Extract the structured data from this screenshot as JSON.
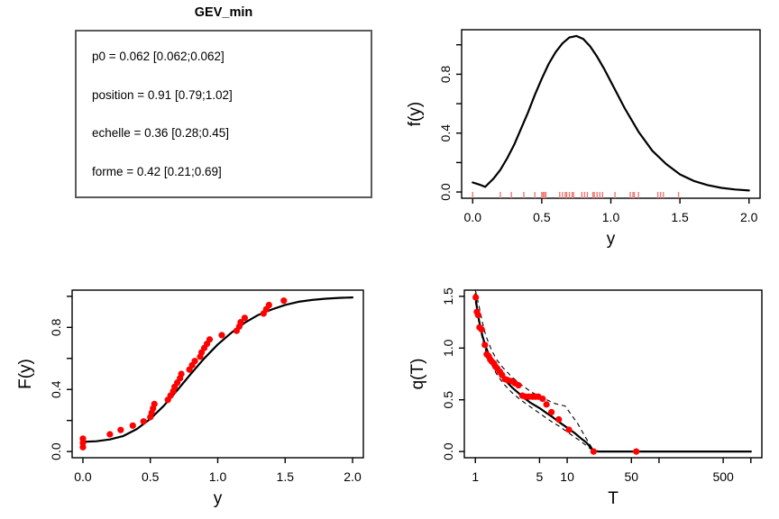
{
  "params_panel": {
    "title": "GEV_min",
    "lines": [
      "p0 = 0.062 [0.062;0.062]",
      "position = 0.91 [0.79;1.02]",
      "echelle = 0.36 [0.28;0.45]",
      "forme = 0.42 [0.21;0.69]"
    ]
  },
  "colors": {
    "curve": "#000000",
    "points": "#ff0000",
    "rug": "#ef7a76",
    "axis": "#000000",
    "param_box_border": "#5a5a5a",
    "background": "#ffffff"
  },
  "chart_data": [
    {
      "id": "density",
      "type": "line",
      "title": "",
      "xlabel": "y",
      "ylabel": "f(y)",
      "xscale": "linear",
      "xlim": [
        0,
        2
      ],
      "ylim": [
        0,
        1.06
      ],
      "grid": false,
      "legend": false,
      "xticks": {
        "values": [
          0,
          0.5,
          1,
          1.5,
          2
        ],
        "labels": [
          "0.0",
          "0.5",
          "1.0",
          "1.5",
          "2.0"
        ]
      },
      "yticks": {
        "values": [
          0,
          0.2,
          0.4,
          0.6,
          0.8,
          1
        ],
        "labels": [
          "0.0",
          "",
          "0.4",
          "",
          "0.8",
          ""
        ]
      },
      "curve": {
        "x": [
          0,
          0.05,
          0.09,
          0.15,
          0.2,
          0.25,
          0.3,
          0.35,
          0.4,
          0.45,
          0.5,
          0.55,
          0.6,
          0.65,
          0.7,
          0.75,
          0.8,
          0.85,
          0.9,
          0.95,
          1,
          1.1,
          1.2,
          1.3,
          1.4,
          1.5,
          1.6,
          1.7,
          1.8,
          1.9,
          2
        ],
        "y": [
          0.065,
          0.05,
          0.035,
          0.09,
          0.15,
          0.23,
          0.32,
          0.43,
          0.54,
          0.66,
          0.77,
          0.87,
          0.95,
          1.01,
          1.05,
          1.06,
          1.04,
          0.99,
          0.92,
          0.84,
          0.75,
          0.57,
          0.41,
          0.28,
          0.19,
          0.12,
          0.075,
          0.047,
          0.028,
          0.017,
          0.01
        ]
      },
      "rug_x": [
        0,
        0.2,
        0.28,
        0.37,
        0.45,
        0.5,
        0.51,
        0.52,
        0.53,
        0.63,
        0.65,
        0.67,
        0.68,
        0.7,
        0.72,
        0.73,
        0.79,
        0.81,
        0.83,
        0.87,
        0.88,
        0.9,
        0.92,
        0.94,
        1.03,
        1.14,
        1.16,
        1.17,
        1.2,
        1.34,
        1.36,
        1.38,
        1.49
      ]
    },
    {
      "id": "cdf",
      "type": "line",
      "title": "",
      "xlabel": "y",
      "ylabel": "F(y)",
      "xscale": "linear",
      "xlim": [
        0,
        2
      ],
      "ylim": [
        0,
        1
      ],
      "grid": false,
      "legend": false,
      "xticks": {
        "values": [
          0,
          0.5,
          1,
          1.5,
          2
        ],
        "labels": [
          "0.0",
          "0.5",
          "1.0",
          "1.5",
          "2.0"
        ]
      },
      "yticks": {
        "values": [
          0,
          0.2,
          0.4,
          0.6,
          0.8,
          1
        ],
        "labels": [
          "0.0",
          "",
          "0.4",
          "",
          "0.8",
          ""
        ]
      },
      "curve": {
        "x": [
          0,
          0.1,
          0.2,
          0.3,
          0.4,
          0.5,
          0.6,
          0.7,
          0.8,
          0.9,
          1,
          1.1,
          1.2,
          1.3,
          1.4,
          1.5,
          1.6,
          1.7,
          1.8,
          1.9,
          2
        ],
        "y": [
          0.062,
          0.066,
          0.078,
          0.1,
          0.145,
          0.21,
          0.295,
          0.395,
          0.5,
          0.6,
          0.69,
          0.765,
          0.83,
          0.88,
          0.915,
          0.945,
          0.965,
          0.977,
          0.985,
          0.99,
          0.993
        ]
      },
      "points": {
        "x": [
          0,
          0,
          0,
          0.2,
          0.28,
          0.37,
          0.45,
          0.5,
          0.51,
          0.52,
          0.53,
          0.63,
          0.65,
          0.67,
          0.68,
          0.7,
          0.72,
          0.73,
          0.79,
          0.81,
          0.83,
          0.87,
          0.88,
          0.9,
          0.92,
          0.94,
          1.03,
          1.14,
          1.16,
          1.17,
          1.2,
          1.34,
          1.36,
          1.38,
          1.49
        ],
        "y": [
          0.028,
          0.056,
          0.083,
          0.111,
          0.139,
          0.167,
          0.194,
          0.222,
          0.25,
          0.278,
          0.306,
          0.333,
          0.361,
          0.389,
          0.417,
          0.444,
          0.472,
          0.5,
          0.528,
          0.556,
          0.583,
          0.611,
          0.639,
          0.667,
          0.694,
          0.722,
          0.75,
          0.778,
          0.806,
          0.833,
          0.861,
          0.889,
          0.917,
          0.944,
          0.972
        ]
      }
    },
    {
      "id": "quantile",
      "type": "line",
      "title": "",
      "xlabel": "T",
      "ylabel": "q(T)",
      "xscale": "log",
      "xlim": [
        1,
        1000
      ],
      "ylim": [
        0,
        1.5
      ],
      "grid": false,
      "legend": false,
      "xticks": {
        "values": [
          1,
          5,
          10,
          50,
          100,
          500,
          1000
        ],
        "labels": [
          "1",
          "5",
          "10",
          "50",
          "",
          "500",
          ""
        ]
      },
      "yticks": {
        "values": [
          0,
          0.5,
          1,
          1.5
        ],
        "labels": [
          "0.0",
          "0.5",
          "1.0",
          "1.5"
        ]
      },
      "curve": {
        "x": [
          1,
          1.05,
          1.1,
          1.2,
          1.3,
          1.4,
          1.5,
          1.7,
          2,
          2.5,
          3,
          3.5,
          4,
          5,
          6,
          7,
          8,
          10,
          12,
          14,
          16,
          18,
          19.5,
          22,
          1000
        ],
        "y": [
          1.52,
          1.36,
          1.26,
          1.11,
          1.01,
          0.94,
          0.88,
          0.79,
          0.71,
          0.62,
          0.56,
          0.51,
          0.47,
          0.42,
          0.37,
          0.33,
          0.29,
          0.23,
          0.18,
          0.13,
          0.09,
          0.04,
          0.005,
          0,
          0
        ]
      },
      "bands": [
        {
          "name": "upper",
          "x": [
            1,
            1.1,
            1.2,
            1.3,
            1.5,
            1.7,
            2,
            2.5,
            3,
            4,
            5,
            6,
            7,
            8,
            9.5,
            11,
            13,
            16,
            19.5,
            22,
            1000
          ],
          "y": [
            1.56,
            1.4,
            1.24,
            1.12,
            0.98,
            0.89,
            0.81,
            0.72,
            0.66,
            0.58,
            0.53,
            0.5,
            0.47,
            0.455,
            0.44,
            0.36,
            0.27,
            0.13,
            0.005,
            0,
            0
          ]
        },
        {
          "name": "lower",
          "x": [
            1,
            1.1,
            1.2,
            1.3,
            1.5,
            1.7,
            2,
            2.5,
            3,
            4,
            5,
            6,
            7,
            8,
            10,
            12,
            14,
            16,
            19.5,
            22,
            1000
          ],
          "y": [
            1.45,
            1.24,
            1.08,
            0.97,
            0.84,
            0.75,
            0.66,
            0.57,
            0.51,
            0.43,
            0.37,
            0.32,
            0.28,
            0.25,
            0.19,
            0.14,
            0.1,
            0.06,
            0,
            0,
            0
          ]
        }
      ],
      "points": {
        "x": [
          1.01,
          1.04,
          1.07,
          1.11,
          1.17,
          1.27,
          1.33,
          1.4,
          1.45,
          1.51,
          1.6,
          1.66,
          1.74,
          1.85,
          1.95,
          2.1,
          2.25,
          2.47,
          2.7,
          2.95,
          3.25,
          3.52,
          3.84,
          4.19,
          4.52,
          4.85,
          5.4,
          5.95,
          6.74,
          8.1,
          10.45,
          19.4,
          56.5
        ],
        "y": [
          1.49,
          1.35,
          1.32,
          1.2,
          1.18,
          1.03,
          0.94,
          0.92,
          0.89,
          0.87,
          0.85,
          0.82,
          0.8,
          0.77,
          0.74,
          0.7,
          0.69,
          0.68,
          0.66,
          0.64,
          0.54,
          0.53,
          0.53,
          0.53,
          0.53,
          0.53,
          0.51,
          0.455,
          0.38,
          0.31,
          0.21,
          0,
          0
        ]
      }
    }
  ]
}
